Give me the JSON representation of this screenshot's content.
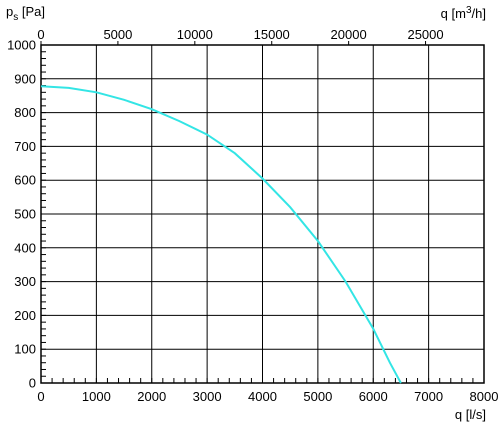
{
  "chart_data": {
    "type": "line",
    "title": "",
    "ylabel": {
      "base": "p",
      "sub": "s",
      "unit": " [Pa]"
    },
    "xlabel_bottom": "q [l/s]",
    "xlabel_top": {
      "pre": "q [m",
      "sup": "3",
      "post": "/h]"
    },
    "xlim": [
      0,
      8000
    ],
    "ylim": [
      0,
      1000
    ],
    "xlim_top": [
      0,
      28800
    ],
    "x_ticks": [
      "0",
      "1000",
      "2000",
      "3000",
      "4000",
      "5000",
      "6000",
      "7000",
      "8000"
    ],
    "y_ticks": [
      "0",
      "100",
      "200",
      "300",
      "400",
      "500",
      "600",
      "700",
      "800",
      "900",
      "1000"
    ],
    "x_top_ticks": [
      "0",
      "5000",
      "10000",
      "15000",
      "20000",
      "25000"
    ],
    "grid": true,
    "series": [
      {
        "color": "#33e5e5",
        "x": [
          0,
          500,
          1000,
          1500,
          2000,
          2500,
          3000,
          3500,
          4000,
          4500,
          5000,
          5500,
          6000,
          6300,
          6500
        ],
        "y": [
          878,
          873,
          860,
          838,
          810,
          775,
          735,
          680,
          605,
          520,
          420,
          300,
          160,
          60,
          0
        ]
      }
    ]
  }
}
